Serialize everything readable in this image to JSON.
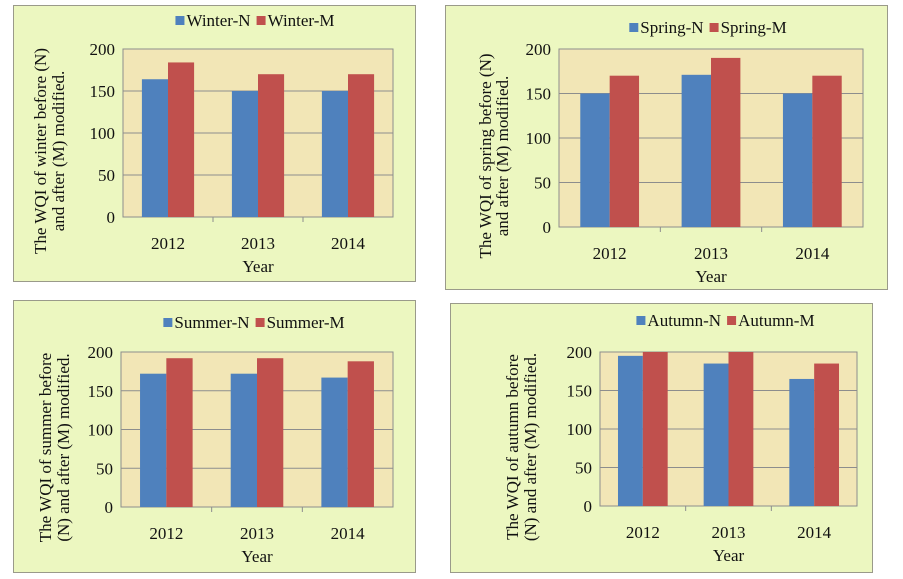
{
  "chart_data": [
    {
      "type": "bar",
      "title": "",
      "categories": [
        "2012",
        "2013",
        "2014"
      ],
      "series": [
        {
          "name": "Winter-N",
          "color": "#4f81bd",
          "values": [
            164,
            150,
            150
          ]
        },
        {
          "name": "Winter-M",
          "color": "#c0504d",
          "values": [
            184,
            170,
            170
          ]
        }
      ],
      "xlabel": "Year",
      "ylabel": [
        "The WQI of winter before (N)",
        "and after (M) modified."
      ],
      "ylim": [
        0,
        200
      ],
      "yticks": [
        0,
        50,
        100,
        150,
        200
      ],
      "grid": true,
      "legend": "top"
    },
    {
      "type": "bar",
      "title": "",
      "categories": [
        "2012",
        "2013",
        "2014"
      ],
      "series": [
        {
          "name": "Spring-N",
          "color": "#4f81bd",
          "values": [
            150,
            171,
            150
          ]
        },
        {
          "name": "Spring-M",
          "color": "#c0504d",
          "values": [
            170,
            190,
            170
          ]
        }
      ],
      "xlabel": "Year",
      "ylabel": [
        "The WQI of spring before (N)",
        "and after (M) modified."
      ],
      "ylim": [
        0,
        200
      ],
      "yticks": [
        0,
        50,
        100,
        150,
        200
      ],
      "grid": true,
      "legend": "top"
    },
    {
      "type": "bar",
      "title": "",
      "categories": [
        "2012",
        "2013",
        "2014"
      ],
      "series": [
        {
          "name": "Summer-N",
          "color": "#4f81bd",
          "values": [
            172,
            172,
            167
          ]
        },
        {
          "name": "Summer-M",
          "color": "#c0504d",
          "values": [
            192,
            192,
            188
          ]
        }
      ],
      "xlabel": "Year",
      "ylabel": [
        "The WQI of summer before",
        "(N) and after (M) modified."
      ],
      "ylim": [
        0,
        200
      ],
      "yticks": [
        0,
        50,
        100,
        150,
        200
      ],
      "grid": true,
      "legend": "top"
    },
    {
      "type": "bar",
      "title": "",
      "categories": [
        "2012",
        "2013",
        "2014"
      ],
      "series": [
        {
          "name": "Autumn-N",
          "color": "#4f81bd",
          "values": [
            195,
            185,
            165
          ]
        },
        {
          "name": "Autumn-M",
          "color": "#c0504d",
          "values": [
            200,
            200,
            185
          ]
        }
      ],
      "xlabel": "Year",
      "ylabel": [
        "The WQI of autumn before",
        "(N) and after (M) modified."
      ],
      "ylim": [
        0,
        200
      ],
      "yticks": [
        0,
        50,
        100,
        150,
        200
      ],
      "grid": true,
      "legend": "top"
    }
  ]
}
